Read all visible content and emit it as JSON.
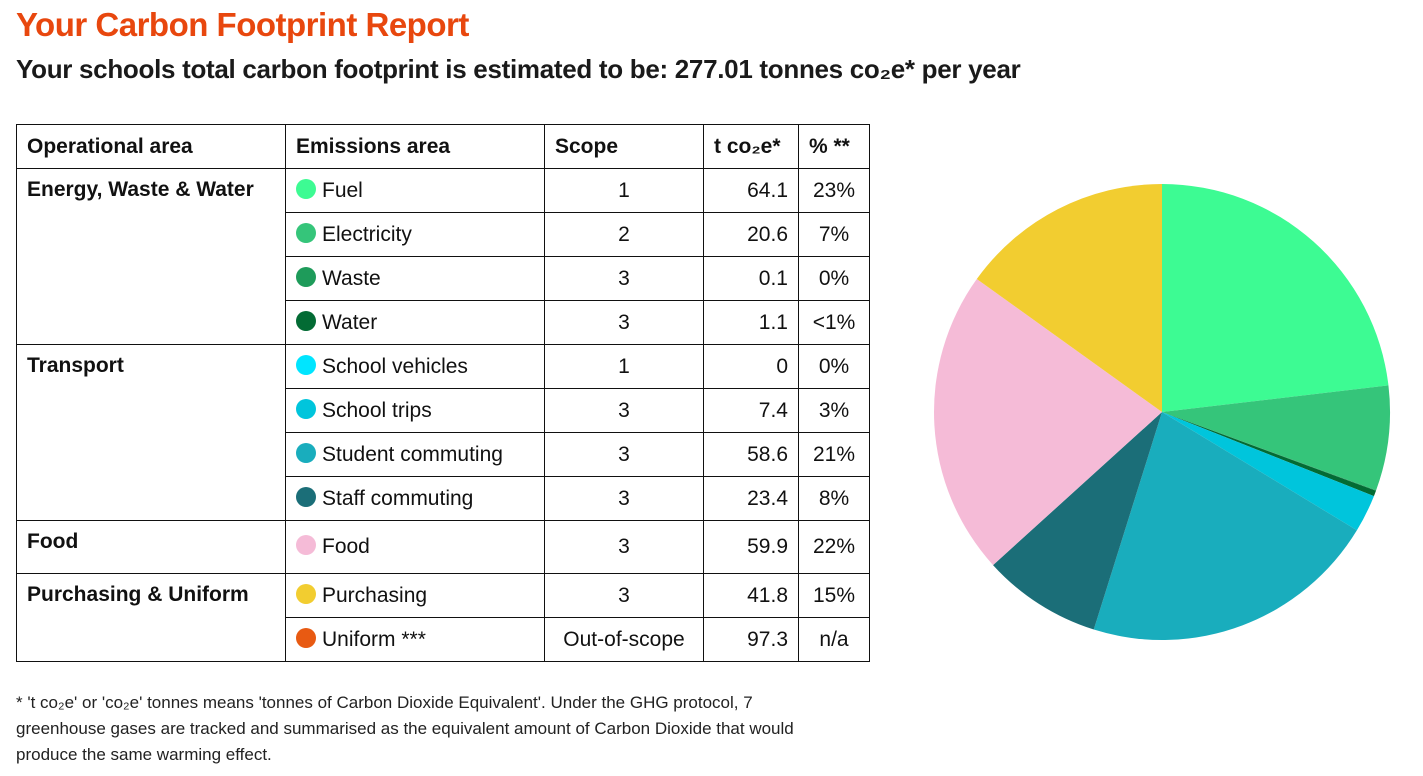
{
  "title": "Your Carbon Footprint Report",
  "subtitle": "Your schools total carbon footprint is estimated to be: 277.01 tonnes co₂e* per year",
  "table": {
    "headers": [
      "Operational area",
      "Emissions area",
      "Scope",
      "t co₂e*",
      "% **"
    ],
    "groups": [
      {
        "area": "Energy, Waste & Water",
        "rows": [
          {
            "name": "Fuel",
            "color": "#3DFB93",
            "scope": "1",
            "t": "64.1",
            "pct": "23%"
          },
          {
            "name": "Electricity",
            "color": "#35C57A",
            "scope": "2",
            "t": "20.6",
            "pct": "7%"
          },
          {
            "name": "Waste",
            "color": "#1E9B5A",
            "scope": "3",
            "t": "0.1",
            "pct": "0%"
          },
          {
            "name": "Water",
            "color": "#036B34",
            "scope": "3",
            "t": "1.1",
            "pct": "<1%"
          }
        ]
      },
      {
        "area": "Transport",
        "rows": [
          {
            "name": "School vehicles",
            "color": "#00E5FF",
            "scope": "1",
            "t": "0",
            "pct": "0%"
          },
          {
            "name": "School trips",
            "color": "#00C5DC",
            "scope": "3",
            "t": "7.4",
            "pct": "3%"
          },
          {
            "name": "Student commuting",
            "color": "#19ADBD",
            "scope": "3",
            "t": "58.6",
            "pct": "21%"
          },
          {
            "name": "Staff commuting",
            "color": "#1B6E78",
            "scope": "3",
            "t": "23.4",
            "pct": "8%"
          }
        ]
      },
      {
        "area": "Food",
        "rows": [
          {
            "name": "Food",
            "color": "#F5BBD7",
            "scope": "3",
            "t": "59.9",
            "pct": "22%"
          }
        ]
      },
      {
        "area": "Purchasing & Uniform",
        "rows": [
          {
            "name": "Purchasing",
            "color": "#F2CD30",
            "scope": "3",
            "t": "41.8",
            "pct": "15%"
          },
          {
            "name": "Uniform ***",
            "color": "#E85A12",
            "scope": "Out-of-scope",
            "t": "97.3",
            "pct": "n/a"
          }
        ]
      }
    ]
  },
  "chart_data": {
    "type": "pie",
    "title": "",
    "start": "top, clockwise",
    "slices": [
      {
        "label": "Fuel",
        "value": 64.1,
        "color": "#3DFB93"
      },
      {
        "label": "Electricity",
        "value": 20.6,
        "color": "#35C57A"
      },
      {
        "label": "Waste",
        "value": 0.1,
        "color": "#1E9B5A"
      },
      {
        "label": "Water",
        "value": 1.1,
        "color": "#036B34"
      },
      {
        "label": "School vehicles",
        "value": 0,
        "color": "#00E5FF"
      },
      {
        "label": "School trips",
        "value": 7.4,
        "color": "#00C5DC"
      },
      {
        "label": "Student commuting",
        "value": 58.6,
        "color": "#19ADBD"
      },
      {
        "label": "Staff commuting",
        "value": 23.4,
        "color": "#1B6E78"
      },
      {
        "label": "Food",
        "value": 59.9,
        "color": "#F5BBD7"
      },
      {
        "label": "Purchasing",
        "value": 41.8,
        "color": "#F2CD30"
      }
    ]
  },
  "footnote": "* 't co₂e' or 'co₂e' tonnes means 'tonnes of Carbon Dioxide Equivalent'. Under the GHG protocol, 7 greenhouse gases are tracked and summarised as the equivalent amount of Carbon Dioxide that would produce the same warming effect."
}
